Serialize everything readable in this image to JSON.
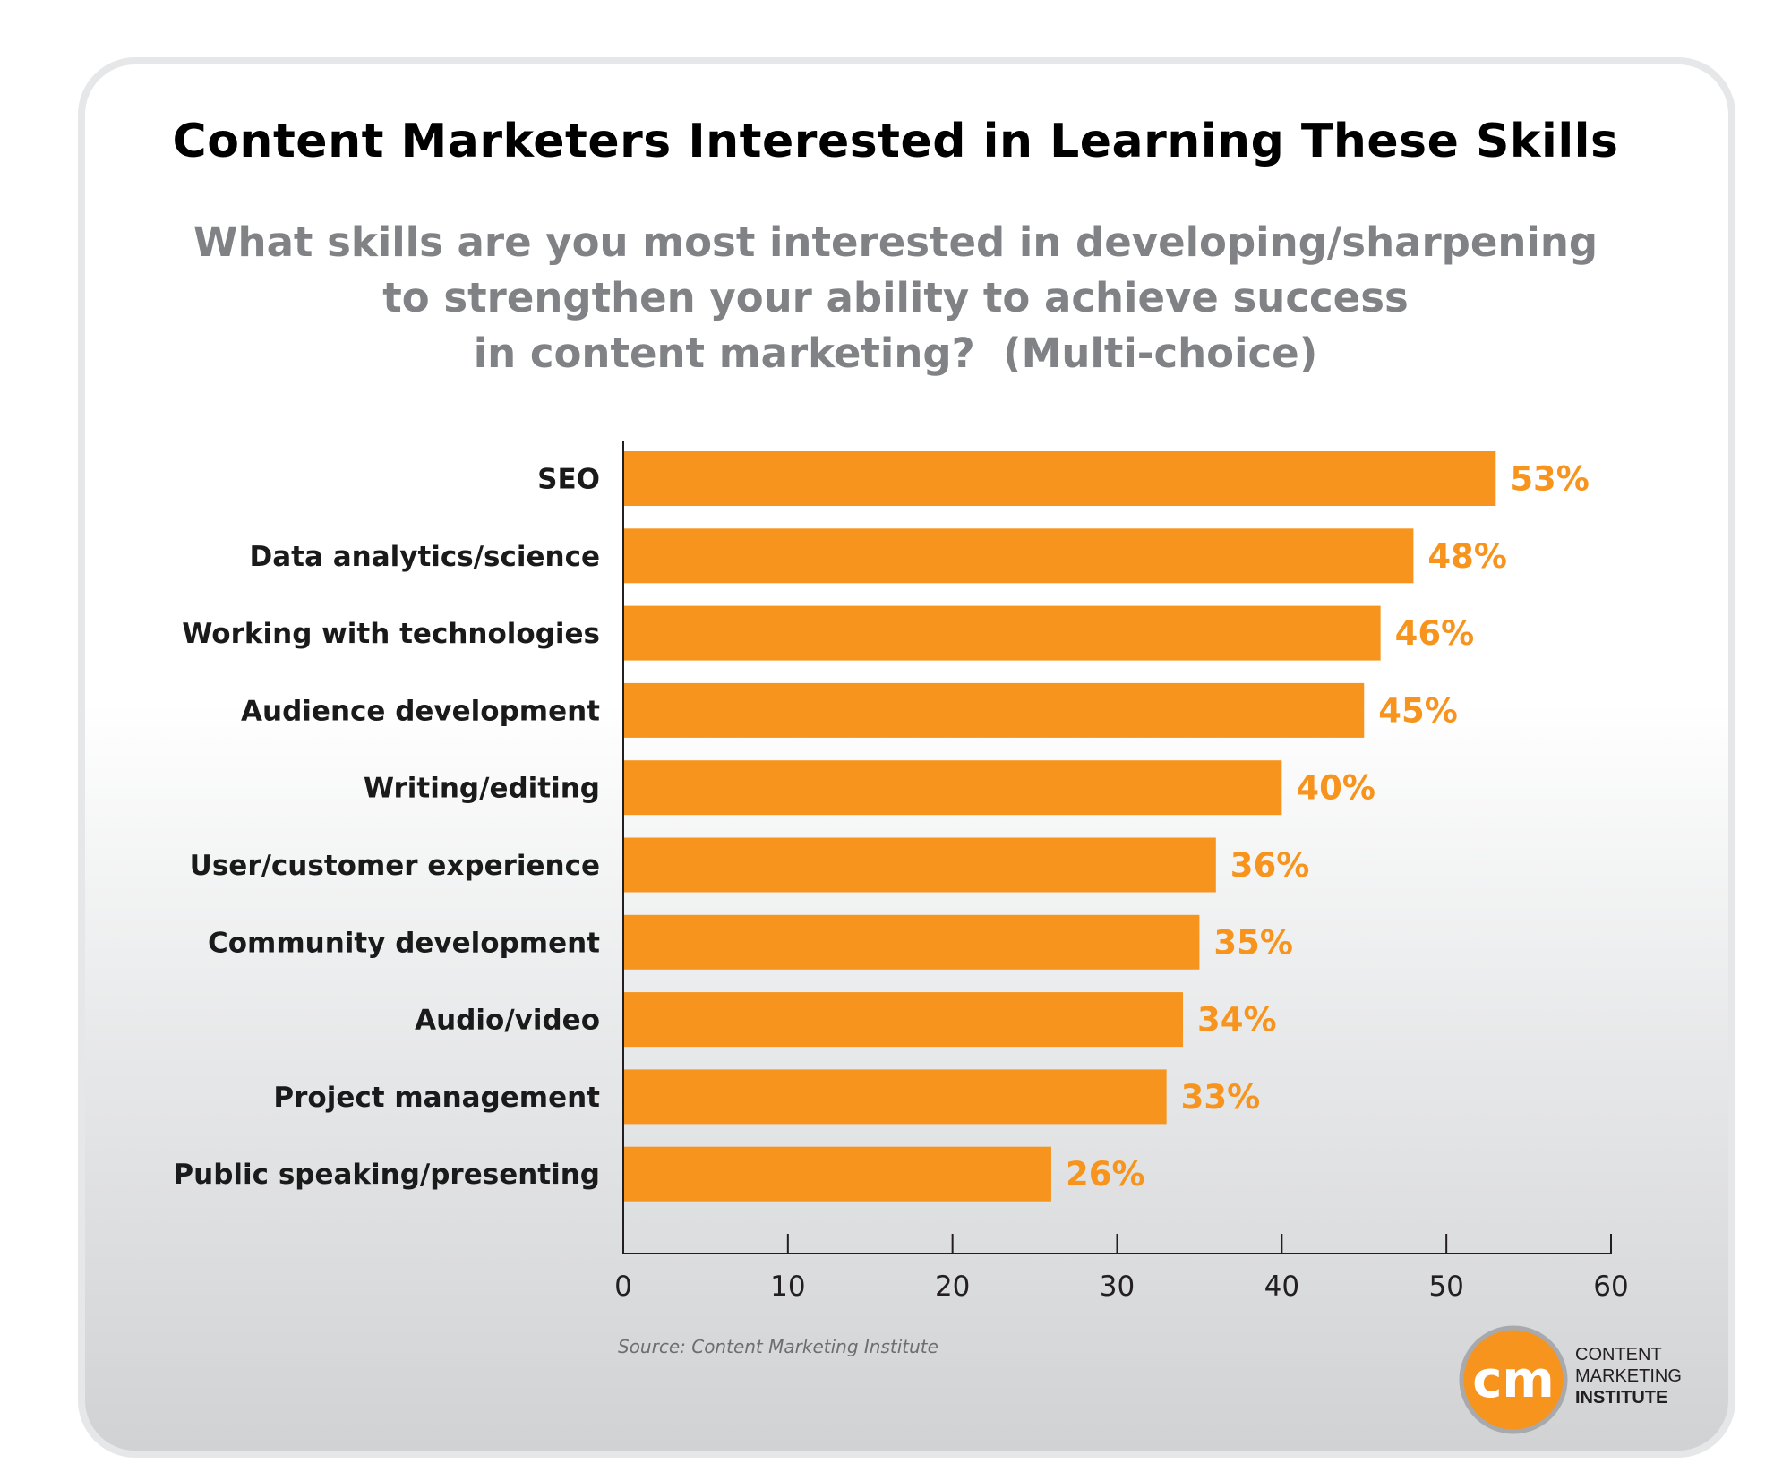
{
  "title": "Content Marketers Interested in Learning These Skills",
  "subtitle_lines": [
    "What skills are you most interested in developing/sharpening",
    "to strengthen your ability to achieve success",
    "in content marketing?  (Multi-choice)"
  ],
  "source": "Source: Content Marketing Institute",
  "logo": {
    "mark": "cm",
    "lines": [
      "CONTENT",
      "MARKETING",
      "INSTITUTE"
    ]
  },
  "colors": {
    "bar": "#f7941d",
    "value_label": "#f7941d",
    "subtitle": "#808285"
  },
  "chart_data": {
    "type": "bar",
    "orientation": "horizontal",
    "categories": [
      "SEO",
      "Data analytics/science",
      "Working with technologies",
      "Audience development",
      "Writing/editing",
      "User/customer experience",
      "Community development",
      "Audio/video",
      "Project management",
      "Public speaking/presenting"
    ],
    "values": [
      53,
      48,
      46,
      45,
      40,
      36,
      35,
      34,
      33,
      26
    ],
    "value_labels": [
      "53%",
      "48%",
      "46%",
      "45%",
      "40%",
      "36%",
      "35%",
      "34%",
      "33%",
      "26%"
    ],
    "xlim": [
      0,
      60
    ],
    "xticks": [
      0,
      10,
      20,
      30,
      40,
      50,
      60
    ],
    "xtick_labels": [
      "0",
      "10",
      "20",
      "30",
      "40",
      "50",
      "60"
    ],
    "grid": false,
    "legend": "none"
  }
}
